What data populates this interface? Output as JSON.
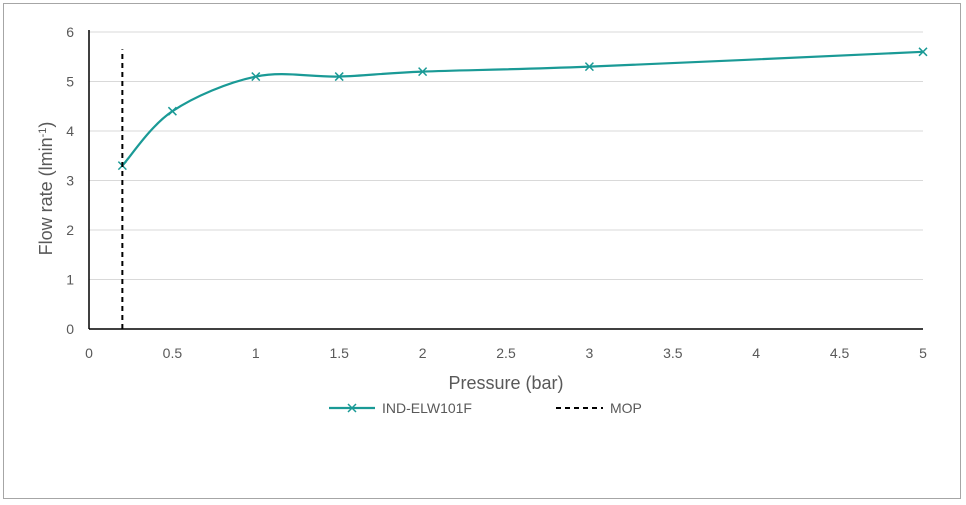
{
  "chart_data": {
    "type": "line",
    "title": "",
    "xlabel": "Pressure (bar)",
    "ylabel_main": "Flow rate (lmin",
    "ylabel_sup": "-1",
    "ylabel_close": ")",
    "xlim": [
      0,
      5
    ],
    "ylim": [
      0,
      6
    ],
    "x_ticks": [
      "0",
      "0.5",
      "1",
      "1.5",
      "2",
      "2.5",
      "3",
      "3.5",
      "4",
      "4.5",
      "5"
    ],
    "y_ticks": [
      "0",
      "1",
      "2",
      "3",
      "4",
      "5",
      "6"
    ],
    "grid": "horizontal",
    "legend_position": "bottom",
    "series": [
      {
        "name": "IND-ELW101F",
        "marker": "x",
        "smooth": true,
        "color": "#1a9a96",
        "x": [
          0.2,
          0.5,
          1,
          1.5,
          2,
          3,
          5
        ],
        "y": [
          3.3,
          4.4,
          5.1,
          5.1,
          5.2,
          5.3,
          5.6
        ]
      },
      {
        "name": "MOP",
        "style": "dashed",
        "color": "#000000",
        "x": [
          0.2,
          0.2
        ],
        "y": [
          0,
          5.65
        ]
      }
    ]
  }
}
